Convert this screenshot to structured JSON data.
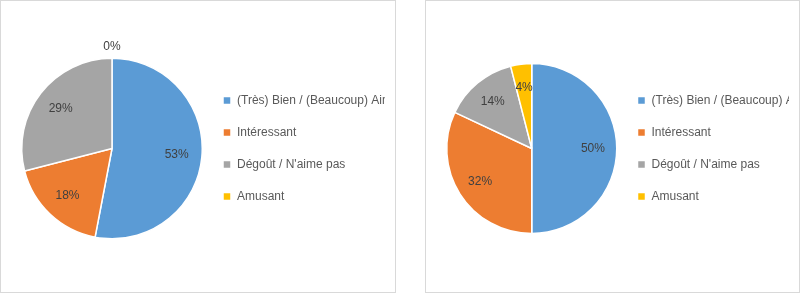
{
  "chart_data": [
    {
      "type": "pie",
      "categories": [
        "(Très) Bien / (Beaucoup) Aimé",
        "Intéressant",
        "Dégoût / N'aime pas",
        "Amusant"
      ],
      "values": [
        53,
        18,
        29,
        0
      ],
      "value_labels": [
        "53%",
        "18%",
        "29%",
        "0%"
      ],
      "colors": [
        "#5b9bd5",
        "#ed7d31",
        "#a5a5a5",
        "#ffc000"
      ],
      "data_labels": true,
      "legend": "right"
    },
    {
      "type": "pie",
      "categories": [
        "(Très) Bien / (Beaucoup) Aimé",
        "Intéressant",
        "Dégoût / N'aime pas",
        "Amusant"
      ],
      "values": [
        50,
        32,
        14,
        4
      ],
      "value_labels": [
        "50%",
        "32%",
        "14%",
        "4%"
      ],
      "colors": [
        "#5b9bd5",
        "#ed7d31",
        "#a5a5a5",
        "#ffc000"
      ],
      "data_labels": true,
      "legend": "right"
    }
  ]
}
